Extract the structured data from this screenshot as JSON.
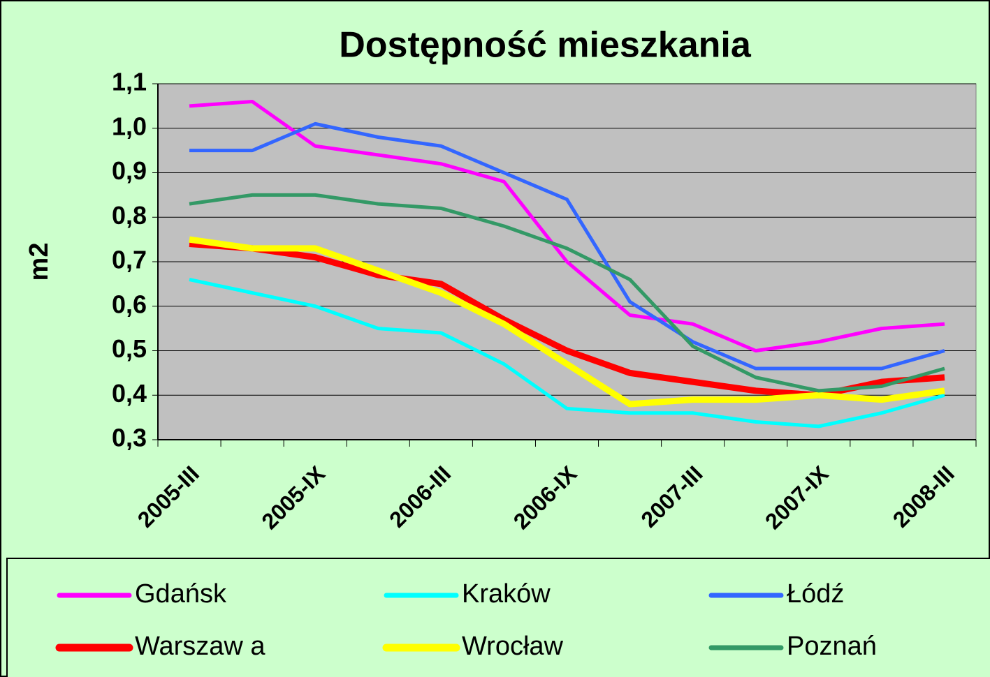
{
  "chart_data": {
    "type": "line",
    "title": "Dostępność mieszkania",
    "y_label": "m2",
    "categories": [
      "2005-III",
      null,
      "2005-IX",
      null,
      "2006-III",
      null,
      "2006-IX",
      null,
      "2007-III",
      null,
      "2007-IX",
      null,
      "2008-III"
    ],
    "ylim": [
      0.3,
      1.1
    ],
    "yticks": [
      {
        "value": 0.3,
        "label": "0,3"
      },
      {
        "value": 0.4,
        "label": "0,4"
      },
      {
        "value": 0.5,
        "label": "0,5"
      },
      {
        "value": 0.6,
        "label": "0,6"
      },
      {
        "value": 0.7,
        "label": "0,7"
      },
      {
        "value": 0.8,
        "label": "0,8"
      },
      {
        "value": 0.9,
        "label": "0,9"
      },
      {
        "value": 1.0,
        "label": "1,0"
      },
      {
        "value": 1.1,
        "label": "1,1"
      }
    ],
    "grid": true,
    "legend": "bottom",
    "series": [
      {
        "name": "Gdańsk",
        "color": "#ff00ff",
        "values": [
          1.05,
          1.06,
          0.96,
          0.94,
          0.92,
          0.88,
          0.7,
          0.58,
          0.56,
          0.5,
          0.52,
          0.55,
          0.56
        ]
      },
      {
        "name": "Kraków",
        "color": "#00ffff",
        "values": [
          0.66,
          0.63,
          0.6,
          0.55,
          0.54,
          0.47,
          0.37,
          0.36,
          0.36,
          0.34,
          0.33,
          0.36,
          0.4
        ]
      },
      {
        "name": "Łódź",
        "color": "#3366ff",
        "values": [
          0.95,
          0.95,
          1.01,
          0.98,
          0.96,
          0.9,
          0.84,
          0.61,
          0.52,
          0.46,
          0.46,
          0.46,
          0.5
        ]
      },
      {
        "name": "Warszaw a",
        "color": "#ff0000",
        "values": [
          0.74,
          0.73,
          0.71,
          0.67,
          0.65,
          0.57,
          0.5,
          0.45,
          0.43,
          0.41,
          0.4,
          0.43,
          0.44
        ]
      },
      {
        "name": "Wrocław",
        "color": "#ffff00",
        "values": [
          0.75,
          0.73,
          0.73,
          0.68,
          0.63,
          0.56,
          0.47,
          0.38,
          0.39,
          0.39,
          0.4,
          0.39,
          0.41
        ]
      },
      {
        "name": "Poznań",
        "color": "#339966",
        "values": [
          0.83,
          0.85,
          0.85,
          0.83,
          0.82,
          0.78,
          0.73,
          0.66,
          0.51,
          0.44,
          0.41,
          0.42,
          0.46
        ]
      }
    ]
  }
}
